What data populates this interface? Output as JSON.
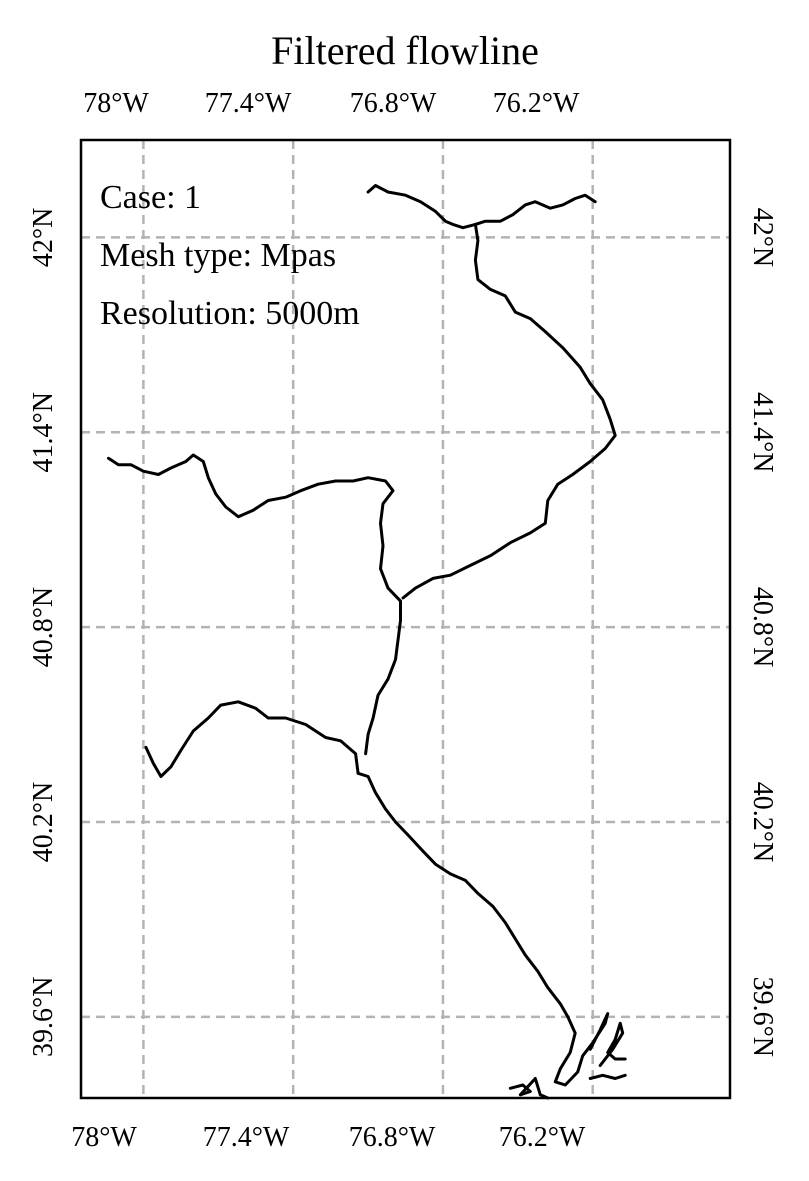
{
  "title": "Filtered flowline",
  "annotations": {
    "case": "Case: 1",
    "mesh_type": "Mesh type: Mpas",
    "resolution": "Resolution: 5000m"
  },
  "colors": {
    "flowline": "#000000",
    "grid": "#b3b3b3",
    "frame": "#000000",
    "background": "#ffffff"
  },
  "chart_data": {
    "type": "map",
    "title": "Filtered flowline",
    "grid": true,
    "grid_style": "dashed",
    "lon_ticks_top": [
      {
        "value": -78.0,
        "label": "78°W"
      },
      {
        "value": -77.4,
        "label": "77.4°W"
      },
      {
        "value": -76.8,
        "label": "76.8°W"
      },
      {
        "value": -76.2,
        "label": "76.2°W"
      }
    ],
    "lon_ticks_bottom": [
      {
        "value": -78.0,
        "label": "78°W"
      },
      {
        "value": -77.4,
        "label": "77.4°W"
      },
      {
        "value": -76.8,
        "label": "76.8°W"
      },
      {
        "value": -76.2,
        "label": "76.2°W"
      }
    ],
    "lat_ticks": [
      {
        "value": 42.0,
        "label": "42°N"
      },
      {
        "value": 41.4,
        "label": "41.4°N"
      },
      {
        "value": 40.8,
        "label": "40.8°N"
      },
      {
        "value": 40.2,
        "label": "40.2°N"
      },
      {
        "value": 39.6,
        "label": "39.6°N"
      }
    ],
    "grid_lon": [
      -77.75,
      -77.15,
      -76.55,
      -75.95
    ],
    "grid_lat": [
      42.0,
      41.4,
      40.8,
      40.2,
      39.6
    ],
    "extent": {
      "lon_min": -78.0,
      "lon_max": -75.4,
      "lat_min": 39.35,
      "lat_max": 42.3
    },
    "flowlines": [
      {
        "id": "north-branch",
        "points": [
          [
            -76.85,
            42.14
          ],
          [
            -76.82,
            42.16
          ],
          [
            -76.77,
            42.14
          ],
          [
            -76.7,
            42.13
          ],
          [
            -76.64,
            42.11
          ],
          [
            -76.58,
            42.08
          ],
          [
            -76.54,
            42.05
          ],
          [
            -76.51,
            42.04
          ],
          [
            -76.47,
            42.03
          ],
          [
            -76.42,
            42.04
          ],
          [
            -76.38,
            42.05
          ],
          [
            -76.32,
            42.05
          ],
          [
            -76.27,
            42.07
          ],
          [
            -76.22,
            42.1
          ],
          [
            -76.18,
            42.11
          ],
          [
            -76.12,
            42.09
          ],
          [
            -76.07,
            42.1
          ],
          [
            -76.02,
            42.12
          ],
          [
            -75.98,
            42.13
          ],
          [
            -75.94,
            42.11
          ]
        ]
      },
      {
        "id": "north-branch-main",
        "points": [
          [
            -76.42,
            42.04
          ],
          [
            -76.41,
            41.99
          ],
          [
            -76.42,
            41.93
          ],
          [
            -76.41,
            41.87
          ],
          [
            -76.36,
            41.84
          ],
          [
            -76.3,
            41.82
          ],
          [
            -76.26,
            41.77
          ],
          [
            -76.2,
            41.75
          ],
          [
            -76.14,
            41.71
          ],
          [
            -76.07,
            41.66
          ],
          [
            -76.0,
            41.6
          ],
          [
            -75.96,
            41.55
          ],
          [
            -75.91,
            41.5
          ],
          [
            -75.88,
            41.44
          ],
          [
            -75.86,
            41.39
          ],
          [
            -75.9,
            41.35
          ],
          [
            -75.96,
            41.31
          ],
          [
            -76.03,
            41.27
          ],
          [
            -76.09,
            41.24
          ],
          [
            -76.13,
            41.19
          ],
          [
            -76.14,
            41.12
          ],
          [
            -76.2,
            41.09
          ],
          [
            -76.28,
            41.06
          ],
          [
            -76.36,
            41.02
          ],
          [
            -76.44,
            40.99
          ],
          [
            -76.52,
            40.96
          ],
          [
            -76.59,
            40.95
          ],
          [
            -76.66,
            40.92
          ],
          [
            -76.71,
            40.89
          ]
        ]
      },
      {
        "id": "west-branch",
        "points": [
          [
            -77.89,
            41.32
          ],
          [
            -77.85,
            41.3
          ],
          [
            -77.8,
            41.3
          ],
          [
            -77.75,
            41.28
          ],
          [
            -77.69,
            41.27
          ],
          [
            -77.64,
            41.29
          ],
          [
            -77.58,
            41.31
          ],
          [
            -77.55,
            41.33
          ],
          [
            -77.51,
            41.31
          ],
          [
            -77.49,
            41.26
          ],
          [
            -77.46,
            41.21
          ],
          [
            -77.42,
            41.17
          ],
          [
            -77.37,
            41.14
          ],
          [
            -77.31,
            41.16
          ],
          [
            -77.25,
            41.19
          ],
          [
            -77.18,
            41.2
          ],
          [
            -77.12,
            41.22
          ],
          [
            -77.05,
            41.24
          ],
          [
            -76.98,
            41.25
          ],
          [
            -76.91,
            41.25
          ],
          [
            -76.85,
            41.26
          ],
          [
            -76.78,
            41.25
          ],
          [
            -76.75,
            41.22
          ],
          [
            -76.79,
            41.18
          ],
          [
            -76.8,
            41.12
          ],
          [
            -76.79,
            41.05
          ],
          [
            -76.8,
            40.98
          ],
          [
            -76.77,
            40.92
          ],
          [
            -76.72,
            40.88
          ],
          [
            -76.72,
            40.82
          ],
          [
            -76.73,
            40.76
          ],
          [
            -76.74,
            40.7
          ],
          [
            -76.77,
            40.64
          ],
          [
            -76.81,
            40.59
          ],
          [
            -76.83,
            40.52
          ],
          [
            -76.85,
            40.47
          ],
          [
            -76.86,
            40.41
          ]
        ]
      },
      {
        "id": "juniata-branch",
        "points": [
          [
            -77.74,
            40.43
          ],
          [
            -77.71,
            40.38
          ],
          [
            -77.68,
            40.34
          ],
          [
            -77.64,
            40.37
          ],
          [
            -77.6,
            40.42
          ],
          [
            -77.55,
            40.48
          ],
          [
            -77.49,
            40.52
          ],
          [
            -77.44,
            40.56
          ],
          [
            -77.37,
            40.57
          ],
          [
            -77.3,
            40.55
          ],
          [
            -77.25,
            40.52
          ],
          [
            -77.18,
            40.52
          ],
          [
            -77.1,
            40.5
          ],
          [
            -77.02,
            40.46
          ],
          [
            -76.96,
            40.45
          ],
          [
            -76.9,
            40.41
          ],
          [
            -76.89,
            40.35
          ]
        ]
      },
      {
        "id": "main-stem",
        "points": [
          [
            -76.89,
            40.35
          ],
          [
            -76.85,
            40.34
          ],
          [
            -76.82,
            40.29
          ],
          [
            -76.78,
            40.24
          ],
          [
            -76.74,
            40.2
          ],
          [
            -76.69,
            40.16
          ],
          [
            -76.63,
            40.11
          ],
          [
            -76.58,
            40.07
          ],
          [
            -76.52,
            40.04
          ],
          [
            -76.46,
            40.02
          ],
          [
            -76.41,
            39.98
          ],
          [
            -76.35,
            39.94
          ],
          [
            -76.3,
            39.89
          ],
          [
            -76.26,
            39.84
          ],
          [
            -76.22,
            39.79
          ],
          [
            -76.17,
            39.74
          ],
          [
            -76.13,
            39.69
          ],
          [
            -76.08,
            39.64
          ],
          [
            -76.05,
            39.6
          ]
        ]
      },
      {
        "id": "bay-outline-1",
        "points": [
          [
            -76.05,
            39.6
          ],
          [
            -76.02,
            39.55
          ],
          [
            -76.04,
            39.49
          ],
          [
            -76.08,
            39.44
          ],
          [
            -76.1,
            39.4
          ],
          [
            -76.06,
            39.39
          ],
          [
            -76.01,
            39.43
          ],
          [
            -75.99,
            39.48
          ],
          [
            -75.95,
            39.52
          ],
          [
            -75.9,
            39.58
          ],
          [
            -75.89,
            39.61
          ],
          [
            -75.92,
            39.56
          ],
          [
            -75.96,
            39.5
          ]
        ]
      },
      {
        "id": "bay-outline-2",
        "points": [
          [
            -75.92,
            39.45
          ],
          [
            -75.87,
            39.5
          ],
          [
            -75.83,
            39.55
          ],
          [
            -75.84,
            39.58
          ],
          [
            -75.86,
            39.53
          ],
          [
            -75.89,
            39.49
          ],
          [
            -75.86,
            39.47
          ],
          [
            -75.82,
            39.47
          ]
        ]
      },
      {
        "id": "bay-outline-3",
        "points": [
          [
            -75.96,
            39.41
          ],
          [
            -75.91,
            39.42
          ],
          [
            -75.86,
            39.41
          ],
          [
            -75.82,
            39.42
          ]
        ]
      },
      {
        "id": "bay-outline-4",
        "points": [
          [
            -76.28,
            39.38
          ],
          [
            -76.23,
            39.39
          ],
          [
            -76.2,
            39.37
          ],
          [
            -76.24,
            39.36
          ],
          [
            -76.18,
            39.41
          ],
          [
            -76.16,
            39.36
          ],
          [
            -76.13,
            39.35
          ]
        ]
      }
    ]
  }
}
